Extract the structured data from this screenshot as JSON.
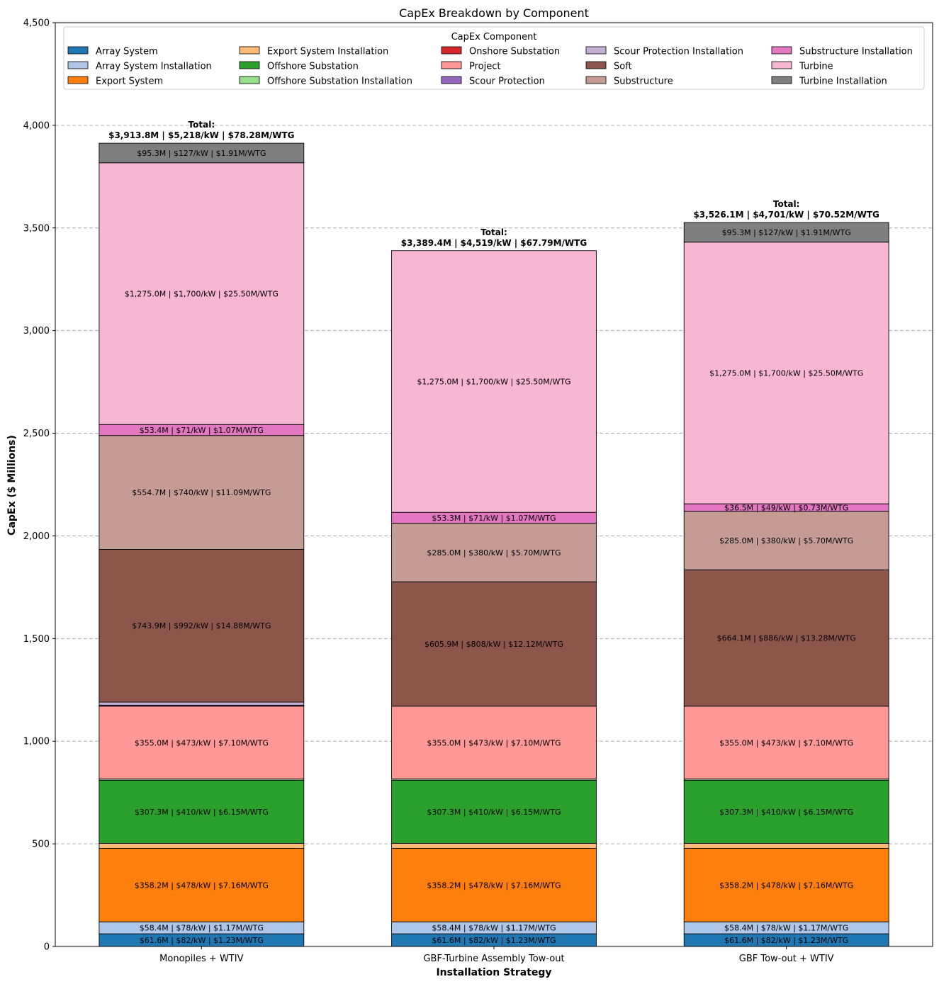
{
  "chart_data": {
    "type": "bar",
    "stacked": true,
    "title": "CapEx Breakdown by Component",
    "xlabel": "Installation Strategy",
    "ylabel": "CapEx ($ Millions)",
    "ylim": [
      0,
      4500
    ],
    "yticks": [
      0,
      500,
      1000,
      1500,
      2000,
      2500,
      3000,
      3500,
      4000,
      4500
    ],
    "ytick_labels": [
      "0",
      "500",
      "1,000",
      "1,500",
      "2,000",
      "2,500",
      "3,000",
      "3,500",
      "4,000",
      "4,500"
    ],
    "grid": "y-dashed",
    "legend": {
      "title": "CapEx Component",
      "placement": "top",
      "columns": 5
    },
    "categories": [
      "Monopiles + WTIV",
      "GBF-Turbine Assembly Tow-out",
      "GBF Tow-out + WTIV"
    ],
    "series": [
      {
        "name": "Array System",
        "color": "#1f77b4",
        "values": [
          61.6,
          61.6,
          61.6
        ],
        "labels": [
          "$61.6M | $82/kW | $1.23M/WTG",
          "$61.6M | $82/kW | $1.23M/WTG",
          "$61.6M | $82/kW | $1.23M/WTG"
        ]
      },
      {
        "name": "Array System Installation",
        "color": "#aec7e8",
        "values": [
          58.4,
          58.4,
          58.4
        ],
        "labels": [
          "$58.4M | $78/kW | $1.17M/WTG",
          "$58.4M | $78/kW | $1.17M/WTG",
          "$58.4M | $78/kW | $1.17M/WTG"
        ]
      },
      {
        "name": "Export System",
        "color": "#ff7f0e",
        "values": [
          358.2,
          358.2,
          358.2
        ],
        "labels": [
          "$358.2M | $478/kW | $7.16M/WTG",
          "$358.2M | $478/kW | $7.16M/WTG",
          "$358.2M | $478/kW | $7.16M/WTG"
        ]
      },
      {
        "name": "Export System Installation",
        "color": "#ffbb78",
        "values": [
          24,
          24,
          24
        ],
        "labels": [
          "",
          "",
          ""
        ]
      },
      {
        "name": "Offshore Substation",
        "color": "#2ca02c",
        "values": [
          307.3,
          307.3,
          307.3
        ],
        "labels": [
          "$307.3M | $410/kW | $6.15M/WTG",
          "$307.3M | $410/kW | $6.15M/WTG",
          "$307.3M | $410/kW | $6.15M/WTG"
        ]
      },
      {
        "name": "Offshore Substation Installation",
        "color": "#98df8a",
        "values": [
          6,
          6,
          6
        ],
        "labels": [
          "",
          "",
          ""
        ]
      },
      {
        "name": "Onshore Substation",
        "color": "#d62728",
        "values": [
          0,
          0,
          0
        ],
        "labels": [
          "",
          "",
          ""
        ]
      },
      {
        "name": "Project",
        "color": "#ff9896",
        "values": [
          355.0,
          355.0,
          355.0
        ],
        "labels": [
          "$355.0M | $473/kW | $7.10M/WTG",
          "$355.0M | $473/kW | $7.10M/WTG",
          "$355.0M | $473/kW | $7.10M/WTG"
        ]
      },
      {
        "name": "Scour Protection",
        "color": "#9467bd",
        "values": [
          5,
          0,
          0
        ],
        "labels": [
          "",
          "",
          ""
        ]
      },
      {
        "name": "Scour Protection Installation",
        "color": "#c5b0d5",
        "values": [
          15,
          0,
          0
        ],
        "labels": [
          "",
          "",
          ""
        ]
      },
      {
        "name": "Soft",
        "color": "#8c564b",
        "values": [
          743.9,
          605.9,
          664.1
        ],
        "labels": [
          "$743.9M | $992/kW | $14.88M/WTG",
          "$605.9M | $808/kW | $12.12M/WTG",
          "$664.1M | $886/kW | $13.28M/WTG"
        ]
      },
      {
        "name": "Substructure",
        "color": "#c49c94",
        "values": [
          554.7,
          285.0,
          285.0
        ],
        "labels": [
          "$554.7M | $740/kW | $11.09M/WTG",
          "$285.0M | $380/kW | $5.70M/WTG",
          "$285.0M | $380/kW | $5.70M/WTG"
        ]
      },
      {
        "name": "Substructure Installation",
        "color": "#e377c2",
        "values": [
          53.4,
          53.3,
          36.5
        ],
        "labels": [
          "$53.4M | $71/kW | $1.07M/WTG",
          "$53.3M | $71/kW | $1.07M/WTG",
          "$36.5M | $49/kW | $0.73M/WTG"
        ]
      },
      {
        "name": "Turbine",
        "color": "#f7b6d2",
        "values": [
          1275.0,
          1275.0,
          1275.0
        ],
        "labels": [
          "$1,275.0M | $1,700/kW | $25.50M/WTG",
          "$1,275.0M | $1,700/kW | $25.50M/WTG",
          "$1,275.0M | $1,700/kW | $25.50M/WTG"
        ]
      },
      {
        "name": "Turbine Installation",
        "color": "#7f7f7f",
        "values": [
          95.3,
          0,
          95.3
        ],
        "labels": [
          "$95.3M | $127/kW | $1.91M/WTG",
          "",
          "$95.3M | $127/kW | $1.91M/WTG"
        ]
      }
    ],
    "totals": [
      {
        "value": 3913.8,
        "line1": "Total:",
        "line2": "$3,913.8M | $5,218/kW | $78.28M/WTG"
      },
      {
        "value": 3389.4,
        "line1": "Total:",
        "line2": "$3,389.4M | $4,519/kW | $67.79M/WTG"
      },
      {
        "value": 3526.1,
        "line1": "Total:",
        "line2": "$3,526.1M | $4,701/kW | $70.52M/WTG"
      }
    ]
  }
}
